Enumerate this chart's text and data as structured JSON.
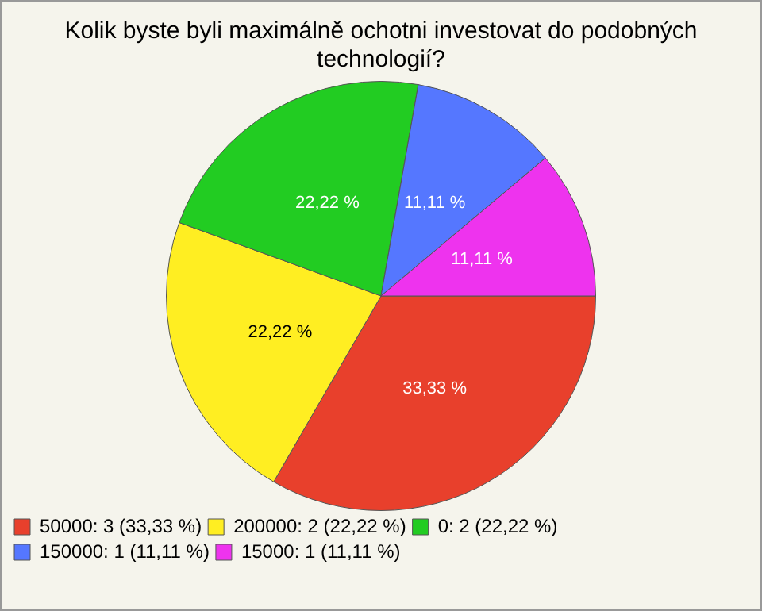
{
  "chart_data": {
    "type": "pie",
    "title": "Kolik byste byli maximálně ochotni investovat do podobných technologií?",
    "categories": [
      "50000: 3 (33,33 %)",
      "200000: 2 (22,22 %)",
      "0: 2 (22,22 %)",
      "150000: 1 (11,11 %)",
      "15000: 1 (11,11 %)"
    ],
    "values": [
      33.33,
      22.22,
      22.22,
      11.11,
      11.11
    ],
    "value_labels": [
      "33,33 %",
      "22,22 %",
      "22,22 %",
      "11,11 %",
      "11,11 %"
    ],
    "colors": [
      "#e8402c",
      "#ffee22",
      "#22cc22",
      "#5577ff",
      "#ee33ee"
    ],
    "legend": "bottom left"
  }
}
